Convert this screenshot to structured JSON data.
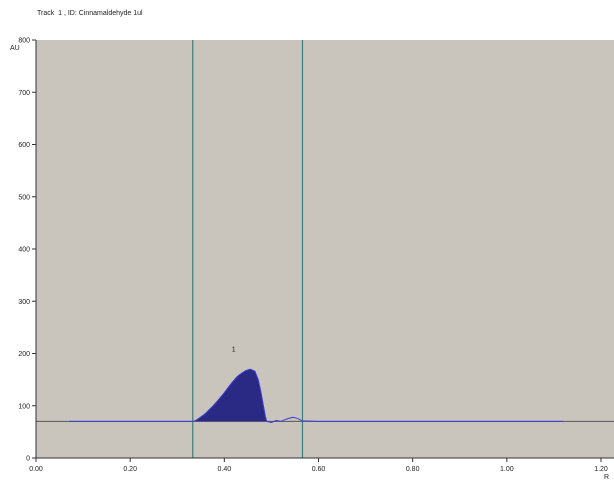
{
  "header": {
    "title": "Track  1 , ID: Cinnamaldehyde 1ul"
  },
  "chart_data": {
    "type": "line",
    "title": "Track  1 , ID: Cinnamaldehyde 1ul",
    "ylabel": "AU",
    "xlabel": "R",
    "xlim": [
      0.0,
      1.2
    ],
    "ylim": [
      0,
      800
    ],
    "x_ticks": [
      "0.00",
      "0.20",
      "0.40",
      "0.60",
      "0.80",
      "1.00",
      "1.20"
    ],
    "y_ticks": [
      "0",
      "100",
      "200",
      "300",
      "400",
      "500",
      "600",
      "700",
      "800"
    ],
    "grid": false,
    "colors": {
      "plot_background": "#c9c5bd",
      "trace": "#3b3bd6",
      "peak_fill": "#2a2a85",
      "boundary_lines": "#3b7d78",
      "baseline": "#555555"
    },
    "baseline_level": 70,
    "boundaries_x": [
      0.333,
      0.566
    ],
    "baseline_range": [
      -0.2,
      1.3
    ],
    "peak": {
      "label": "1",
      "label_x": 0.42,
      "label_y": 200,
      "fill_points": [
        [
          0.335,
          70
        ],
        [
          0.355,
          82
        ],
        [
          0.375,
          100
        ],
        [
          0.395,
          120
        ],
        [
          0.41,
          138
        ],
        [
          0.425,
          155
        ],
        [
          0.44,
          165
        ],
        [
          0.455,
          170
        ],
        [
          0.465,
          166
        ],
        [
          0.472,
          150
        ],
        [
          0.478,
          125
        ],
        [
          0.483,
          100
        ],
        [
          0.487,
          80
        ],
        [
          0.49,
          70
        ]
      ]
    },
    "series": [
      {
        "points": [
          [
            0.07,
            70
          ],
          [
            0.333,
            70
          ],
          [
            0.34,
            72
          ],
          [
            0.36,
            85
          ],
          [
            0.38,
            103
          ],
          [
            0.4,
            125
          ],
          [
            0.415,
            143
          ],
          [
            0.43,
            158
          ],
          [
            0.445,
            167
          ],
          [
            0.455,
            170
          ],
          [
            0.465,
            166
          ],
          [
            0.472,
            150
          ],
          [
            0.478,
            125
          ],
          [
            0.483,
            100
          ],
          [
            0.487,
            80
          ],
          [
            0.49,
            70
          ],
          [
            0.5,
            68
          ],
          [
            0.51,
            72
          ],
          [
            0.52,
            70
          ],
          [
            0.53,
            74
          ],
          [
            0.545,
            78
          ],
          [
            0.555,
            76
          ],
          [
            0.566,
            71
          ],
          [
            0.6,
            70
          ],
          [
            1.12,
            70
          ]
        ]
      }
    ]
  }
}
